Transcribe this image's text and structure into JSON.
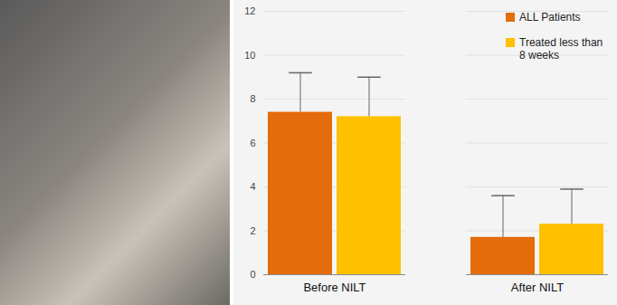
{
  "chart_data": {
    "type": "bar",
    "categories": [
      "Before NILT",
      "After NILT"
    ],
    "series": [
      {
        "name": "ALL Patients",
        "color": "#e46c0a",
        "values": [
          7.4,
          1.7
        ],
        "errors": [
          1.8,
          1.9
        ]
      },
      {
        "name": "Treated less than 8 weeks",
        "color": "#ffc000",
        "values": [
          7.2,
          2.3
        ],
        "errors": [
          1.8,
          1.6
        ]
      }
    ],
    "ylim": [
      0,
      12
    ],
    "yticks": [
      0,
      2,
      4,
      6,
      8,
      10,
      12
    ],
    "grid": true,
    "legend": "top-right"
  }
}
